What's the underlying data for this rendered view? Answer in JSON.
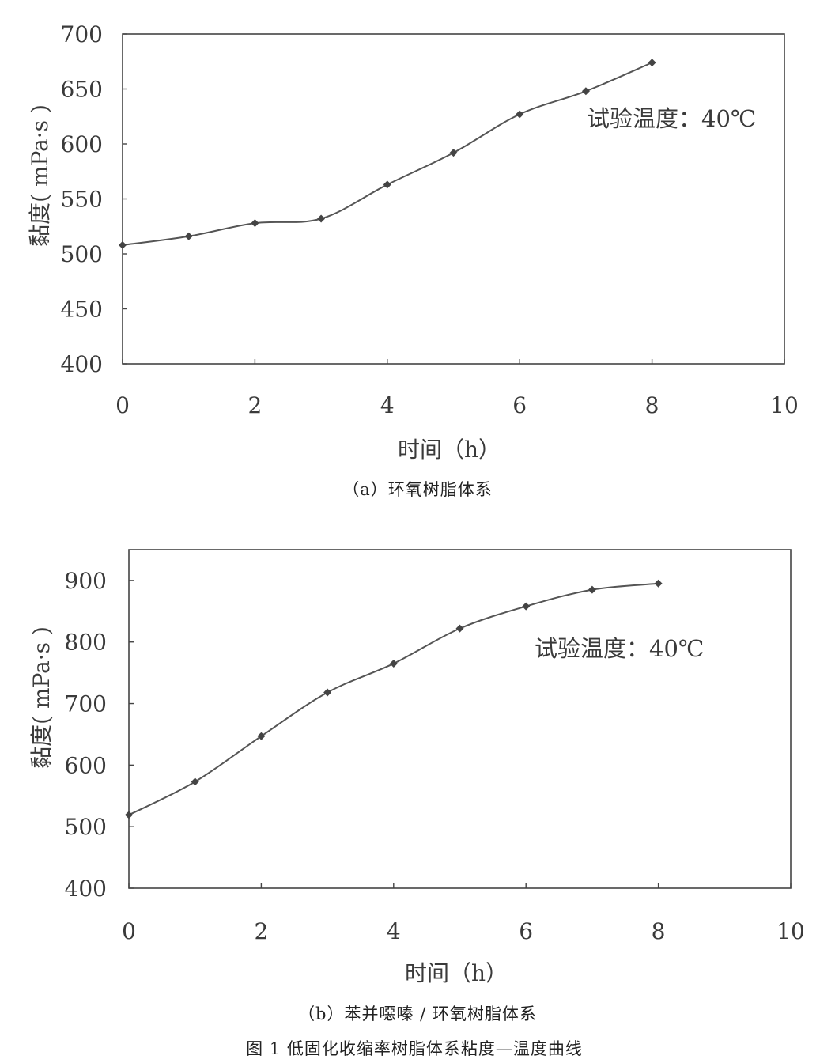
{
  "chart_data": [
    {
      "type": "line",
      "caption": "（a）环氧树脂体系",
      "xlabel": "时间（h）",
      "ylabel": "黏度( mPa·s )",
      "annotation": "试验温度：40℃",
      "xlim": [
        0,
        10
      ],
      "ylim": [
        400,
        700
      ],
      "xticks": [
        0,
        2,
        4,
        6,
        8,
        10
      ],
      "yticks": [
        400,
        450,
        500,
        550,
        600,
        650,
        700
      ],
      "grid": false,
      "series": [
        {
          "x": [
            0,
            1,
            2,
            3,
            4,
            5,
            6,
            7,
            8
          ],
          "values": [
            508,
            516,
            528,
            532,
            563,
            592,
            627,
            648,
            674
          ]
        }
      ]
    },
    {
      "type": "line",
      "caption": "（b）苯并噁嗪 / 环氧树脂体系",
      "xlabel": "时间（h）",
      "ylabel": "黏度( mPa·s )",
      "annotation": "试验温度：40℃",
      "xlim": [
        0,
        10
      ],
      "ylim": [
        400,
        950
      ],
      "xticks": [
        0,
        2,
        4,
        6,
        8,
        10
      ],
      "yticks": [
        400,
        500,
        600,
        700,
        800,
        900
      ],
      "grid": false,
      "series": [
        {
          "x": [
            0,
            1,
            2,
            3,
            4,
            5,
            6,
            7,
            8
          ],
          "values": [
            519,
            573,
            647,
            718,
            765,
            822,
            858,
            885,
            895
          ]
        }
      ]
    }
  ],
  "figure_caption": "图 1  低固化收缩率树脂体系粘度—温度曲线"
}
